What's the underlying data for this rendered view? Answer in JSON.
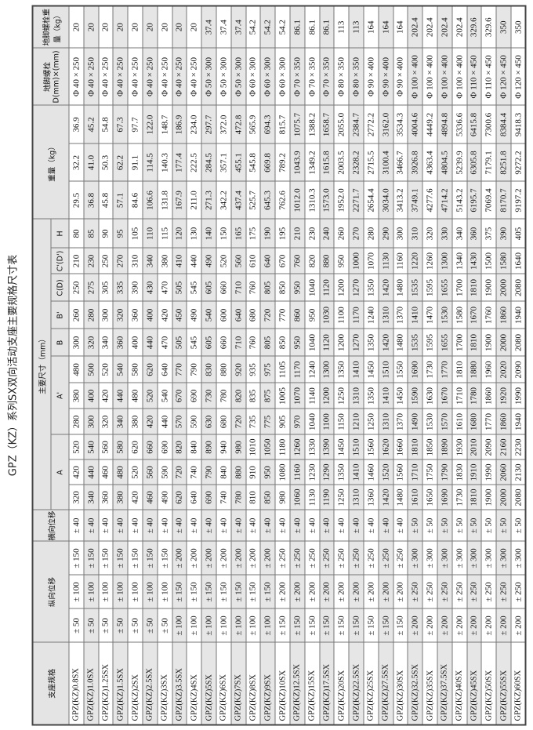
{
  "title": "GPZ（KZ）系列SX双向活动支座主要规格尺寸表",
  "headers": {
    "spec": "支座规格",
    "longitudinal": "纵向位移",
    "transverse": "横向位移",
    "main_dims": "主要尺寸（mm）",
    "A": "A",
    "A_prime": "A'",
    "B": "B",
    "B_prime": "B'",
    "C": "C(D)",
    "C_prime": "C'(D')",
    "H": "H",
    "weight": "重量（kg）",
    "bolt": "地脚螺栓 D(mm)×(mm)",
    "bolt_weight": "地脚螺栓重量（kg）"
  },
  "rows": [
    [
      "GPZ(KZ)0.8SX",
      "± 50",
      "± 100",
      "± 150",
      "± 40",
      "320",
      "420",
      "520",
      "280",
      "380",
      "480",
      "300",
      "260",
      "250",
      "210",
      "80",
      "29.5",
      "32.2",
      "36.9",
      "Φ 40 × 250",
      "20"
    ],
    [
      "GPZ(KZ)1.0SX",
      "± 50",
      "± 100",
      "± 150",
      "± 40",
      "340",
      "440",
      "540",
      "300",
      "400",
      "500",
      "320",
      "280",
      "275",
      "230",
      "85",
      "36.8",
      "41.0",
      "45.2",
      "Φ 40 × 250",
      "20"
    ],
    [
      "GPZ(KZ)1.25SX",
      "± 50",
      "± 100",
      "± 150",
      "± 40",
      "360",
      "460",
      "560",
      "320",
      "420",
      "520",
      "340",
      "300",
      "305",
      "250",
      "90",
      "45.8",
      "50.3",
      "54.8",
      "Φ 40 × 250",
      "20"
    ],
    [
      "GPZ(KZ)1.5SX",
      "± 50",
      "± 100",
      "± 150",
      "± 40",
      "380",
      "480",
      "580",
      "340",
      "440",
      "540",
      "360",
      "320",
      "335",
      "270",
      "95",
      "57.1",
      "62.2",
      "67.3",
      "Φ 40 × 250",
      "20"
    ],
    [
      "GPZ(KZ)2SX",
      "± 50",
      "± 100",
      "± 150",
      "± 40",
      "420",
      "520",
      "620",
      "380",
      "480",
      "580",
      "400",
      "360",
      "390",
      "310",
      "105",
      "84.6",
      "91.1",
      "97.7",
      "Φ 40 × 250",
      "20"
    ],
    [
      "GPZ(KZ)2.5SX",
      "± 50",
      "± 100",
      "± 150",
      "± 40",
      "460",
      "560",
      "660",
      "420",
      "520",
      "620",
      "440",
      "400",
      "430",
      "340",
      "110",
      "106.6",
      "114.5",
      "122.0",
      "Φ 40 × 250",
      "20"
    ],
    [
      "GPZ(KZ)3SX",
      "± 50",
      "± 100",
      "± 150",
      "± 40",
      "490",
      "590",
      "690",
      "440",
      "540",
      "640",
      "470",
      "420",
      "470",
      "380",
      "115",
      "131.8",
      "140.3",
      "148.7",
      "Φ 40 × 250",
      "20"
    ],
    [
      "GPZ(KZ)3.5SX",
      "± 100",
      "± 150",
      "± 200",
      "± 40",
      "620",
      "720",
      "820",
      "570",
      "670",
      "770",
      "505",
      "450",
      "505",
      "410",
      "120",
      "167.9",
      "177.4",
      "186.9",
      "Φ 40 × 250",
      "20"
    ],
    [
      "GPZ(KZ)4SX",
      "± 100",
      "± 150",
      "± 200",
      "± 40",
      "640",
      "740",
      "840",
      "590",
      "690",
      "790",
      "545",
      "490",
      "545",
      "440",
      "130",
      "211.0",
      "222.5",
      "234.0",
      "Φ 40 × 250",
      "20"
    ],
    [
      "GPZ(KZ)5SX",
      "± 100",
      "± 150",
      "± 200",
      "± 40",
      "690",
      "790",
      "890",
      "630",
      "730",
      "830",
      "605",
      "540",
      "605",
      "490",
      "140",
      "271.3",
      "284.5",
      "297.7",
      "Φ 50 × 300",
      "37.4"
    ],
    [
      "GPZ(KZ)6SX",
      "± 100",
      "± 150",
      "± 200",
      "± 40",
      "740",
      "840",
      "940",
      "680",
      "780",
      "880",
      "660",
      "600",
      "660",
      "520",
      "150",
      "342.2",
      "357.1",
      "372.0",
      "Φ 50 × 300",
      "37.4"
    ],
    [
      "GPZ(KZ)7SX",
      "± 100",
      "± 150",
      "± 200",
      "± 40",
      "780",
      "880",
      "980",
      "720",
      "820",
      "920",
      "710",
      "640",
      "710",
      "560",
      "165",
      "437.4",
      "455.1",
      "472.8",
      "Φ 50 × 300",
      "37.4"
    ],
    [
      "GPZ(KZ)8SX",
      "± 100",
      "± 150",
      "± 200",
      "± 40",
      "810",
      "910",
      "1010",
      "735",
      "835",
      "935",
      "760",
      "680",
      "760",
      "610",
      "175",
      "525.7",
      "545.8",
      "565.9",
      "Φ 60 × 300",
      "54.2"
    ],
    [
      "GPZ(KZ)9SX",
      "± 100",
      "± 150",
      "± 200",
      "± 40",
      "850",
      "950",
      "1050",
      "775",
      "875",
      "975",
      "805",
      "720",
      "805",
      "640",
      "190",
      "645.3",
      "669.8",
      "694.3",
      "Φ 60 × 300",
      "54.2"
    ],
    [
      "GPZ(KZ)10SX",
      "± 150",
      "± 200",
      "± 250",
      "± 40",
      "980",
      "1080",
      "1180",
      "905",
      "1005",
      "1105",
      "850",
      "770",
      "850",
      "670",
      "195",
      "762.6",
      "789.2",
      "815.7",
      "Φ 60 × 300",
      "54.2"
    ],
    [
      "GPZ(KZ)12.5SX",
      "± 150",
      "± 200",
      "± 250",
      "± 40",
      "1060",
      "1160",
      "1260",
      "970",
      "1070",
      "1170",
      "950",
      "860",
      "950",
      "760",
      "210",
      "1012.0",
      "1043.9",
      "1075.7",
      "Φ 70 × 350",
      "86.1"
    ],
    [
      "GPZ(KZ)15SX",
      "± 150",
      "± 200",
      "± 250",
      "± 40",
      "1130",
      "1230",
      "1330",
      "1040",
      "1140",
      "1240",
      "1040",
      "950",
      "1040",
      "820",
      "230",
      "1310.3",
      "1349.2",
      "1388.2",
      "Φ 70 × 350",
      "86.1"
    ],
    [
      "GPZ(KZ)17.5SX",
      "± 150",
      "± 200",
      "± 250",
      "± 40",
      "1190",
      "1290",
      "1390",
      "1100",
      "1200",
      "1300",
      "1120",
      "1030",
      "1120",
      "880",
      "240",
      "1573.0",
      "1615.8",
      "1658.7",
      "Φ 70 × 350",
      "86.1"
    ],
    [
      "GPZ(KZ)20SX",
      "± 150",
      "± 200",
      "± 250",
      "± 40",
      "1250",
      "1350",
      "1450",
      "1150",
      "1250",
      "1350",
      "1200",
      "1100",
      "1200",
      "950",
      "260",
      "1952.0",
      "2003.5",
      "2055.0",
      "Φ 80 × 350",
      "113"
    ],
    [
      "GPZ(KZ)22.5SX",
      "± 150",
      "± 200",
      "± 250",
      "± 40",
      "1310",
      "1410",
      "1510",
      "1210",
      "1310",
      "1410",
      "1270",
      "1170",
      "1270",
      "1000",
      "270",
      "2271.7",
      "2328.2",
      "2384.7",
      "Φ 80 × 350",
      "113"
    ],
    [
      "GPZ(KZ)25SX",
      "± 150",
      "± 200",
      "± 250",
      "± 40",
      "1360",
      "1460",
      "1560",
      "1250",
      "1350",
      "1450",
      "1350",
      "1240",
      "1350",
      "1070",
      "280",
      "2654.4",
      "2715.5",
      "2772.2",
      "Φ 90 × 400",
      "164"
    ],
    [
      "GPZ(KZ)27.5SX",
      "± 150",
      "± 200",
      "± 250",
      "± 40",
      "1420",
      "1520",
      "1620",
      "1310",
      "1410",
      "1510",
      "1420",
      "1310",
      "1420",
      "1130",
      "290",
      "3034.0",
      "3100.4",
      "3162.0",
      "Φ 90 × 400",
      "164"
    ],
    [
      "GPZ(KZ)30SX",
      "± 150",
      "± 200",
      "± 250",
      "± 40",
      "1480",
      "1560",
      "1660",
      "1370",
      "1450",
      "1550",
      "1480",
      "1370",
      "1480",
      "1160",
      "300",
      "3413.2",
      "3466.7",
      "3534.3",
      "Φ 90 × 400",
      "164"
    ],
    [
      "GPZ(KZ)32.5SX",
      "± 200",
      "± 250",
      "± 300",
      "± 50",
      "1610",
      "1710",
      "1810",
      "1490",
      "1590",
      "1690",
      "1535",
      "1410",
      "1535",
      "1220",
      "310",
      "3749.1",
      "3926.8",
      "4004.6",
      "Φ 100 × 400",
      "202.4"
    ],
    [
      "GPZ(KZ)35SX",
      "± 200",
      "± 250",
      "± 300",
      "± 50",
      "1650",
      "1750",
      "1850",
      "1530",
      "1630",
      "1730",
      "1595",
      "1470",
      "1595",
      "1260",
      "320",
      "4277.6",
      "4363.4",
      "4449.2",
      "Φ 100 × 400",
      "202.4"
    ],
    [
      "GPZ(KZ)37.5SX",
      "± 200",
      "± 250",
      "± 300",
      "± 50",
      "1690",
      "1790",
      "1890",
      "1570",
      "1670",
      "1770",
      "1655",
      "1530",
      "1655",
      "1300",
      "330",
      "4714.2",
      "4804.5",
      "4894.8",
      "Φ 100 × 400",
      "202.4"
    ],
    [
      "GPZ(KZ)40SX",
      "± 200",
      "± 250",
      "± 300",
      "± 50",
      "1730",
      "1830",
      "1930",
      "1610",
      "1710",
      "1810",
      "1700",
      "1580",
      "1700",
      "1340",
      "340",
      "5143.2",
      "5239.9",
      "5336.6",
      "Φ 100 × 400",
      "202.4"
    ],
    [
      "GPZ(KZ)45SX",
      "± 200",
      "± 250",
      "± 300",
      "± 50",
      "1810",
      "1910",
      "2010",
      "1680",
      "1780",
      "1880",
      "1810",
      "1670",
      "1810",
      "1430",
      "360",
      "6195.7",
      "6305.8",
      "6415.8",
      "Φ 110 × 450",
      "329.6"
    ],
    [
      "GPZ(KZ)50SX",
      "± 200",
      "± 250",
      "± 300",
      "± 50",
      "1900",
      "1990",
      "2090",
      "1770",
      "1860",
      "1960",
      "1900",
      "1760",
      "1900",
      "1500",
      "375",
      "7069.4",
      "7179.1",
      "7300.6",
      "Φ 110 × 450",
      "329.6"
    ],
    [
      "GPZ(KZ)55SX",
      "± 200",
      "± 250",
      "± 300",
      "± 50",
      "2000",
      "2060",
      "2160",
      "1860",
      "1920",
      "2020",
      "2000",
      "1860",
      "2000",
      "1580",
      "390",
      "8170.7",
      "8251.8",
      "8384.4",
      "Φ 120 × 450",
      "350"
    ],
    [
      "GPZ(KZ)60SX",
      "± 200",
      "± 250",
      "± 300",
      "± 50",
      "2080",
      "2130",
      "2230",
      "1940",
      "1990",
      "2090",
      "2080",
      "1940",
      "2080",
      "1640",
      "405",
      "9197.2",
      "9272.2",
      "9418.3",
      "Φ 120 × 450",
      "350"
    ]
  ]
}
